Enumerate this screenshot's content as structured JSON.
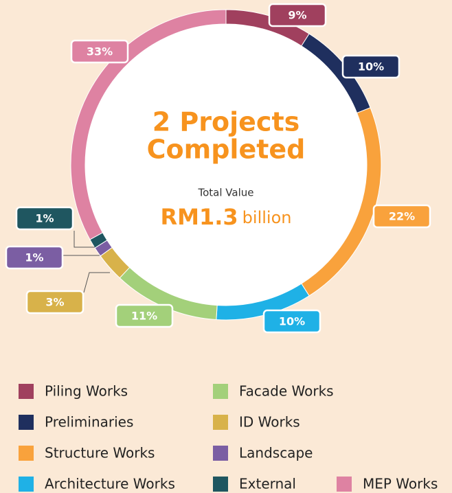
{
  "chart_data": {
    "type": "donut",
    "title": [
      "2 Projects",
      "Completed"
    ],
    "subtitle": "Total Value",
    "total_value": "RM1.3",
    "total_unit": "billion",
    "categories": [
      "Piling Works",
      "Preliminaries",
      "Structure Works",
      "Architecture Works",
      "Facade Works",
      "ID Works",
      "Landscape",
      "External",
      "MEP Works"
    ],
    "values": [
      9,
      10,
      22,
      10,
      11,
      3,
      1,
      1,
      33
    ],
    "value_labels": [
      "9%",
      "10%",
      "22%",
      "10%",
      "11%",
      "3%",
      "1%",
      "1%",
      "33%"
    ],
    "colors": [
      "#a0405e",
      "#1f2f5e",
      "#f9a23c",
      "#1fb1e6",
      "#a3d07a",
      "#d8b24a",
      "#7b5ea3",
      "#1f5660",
      "#de82a2"
    ],
    "legend": "bottom"
  }
}
